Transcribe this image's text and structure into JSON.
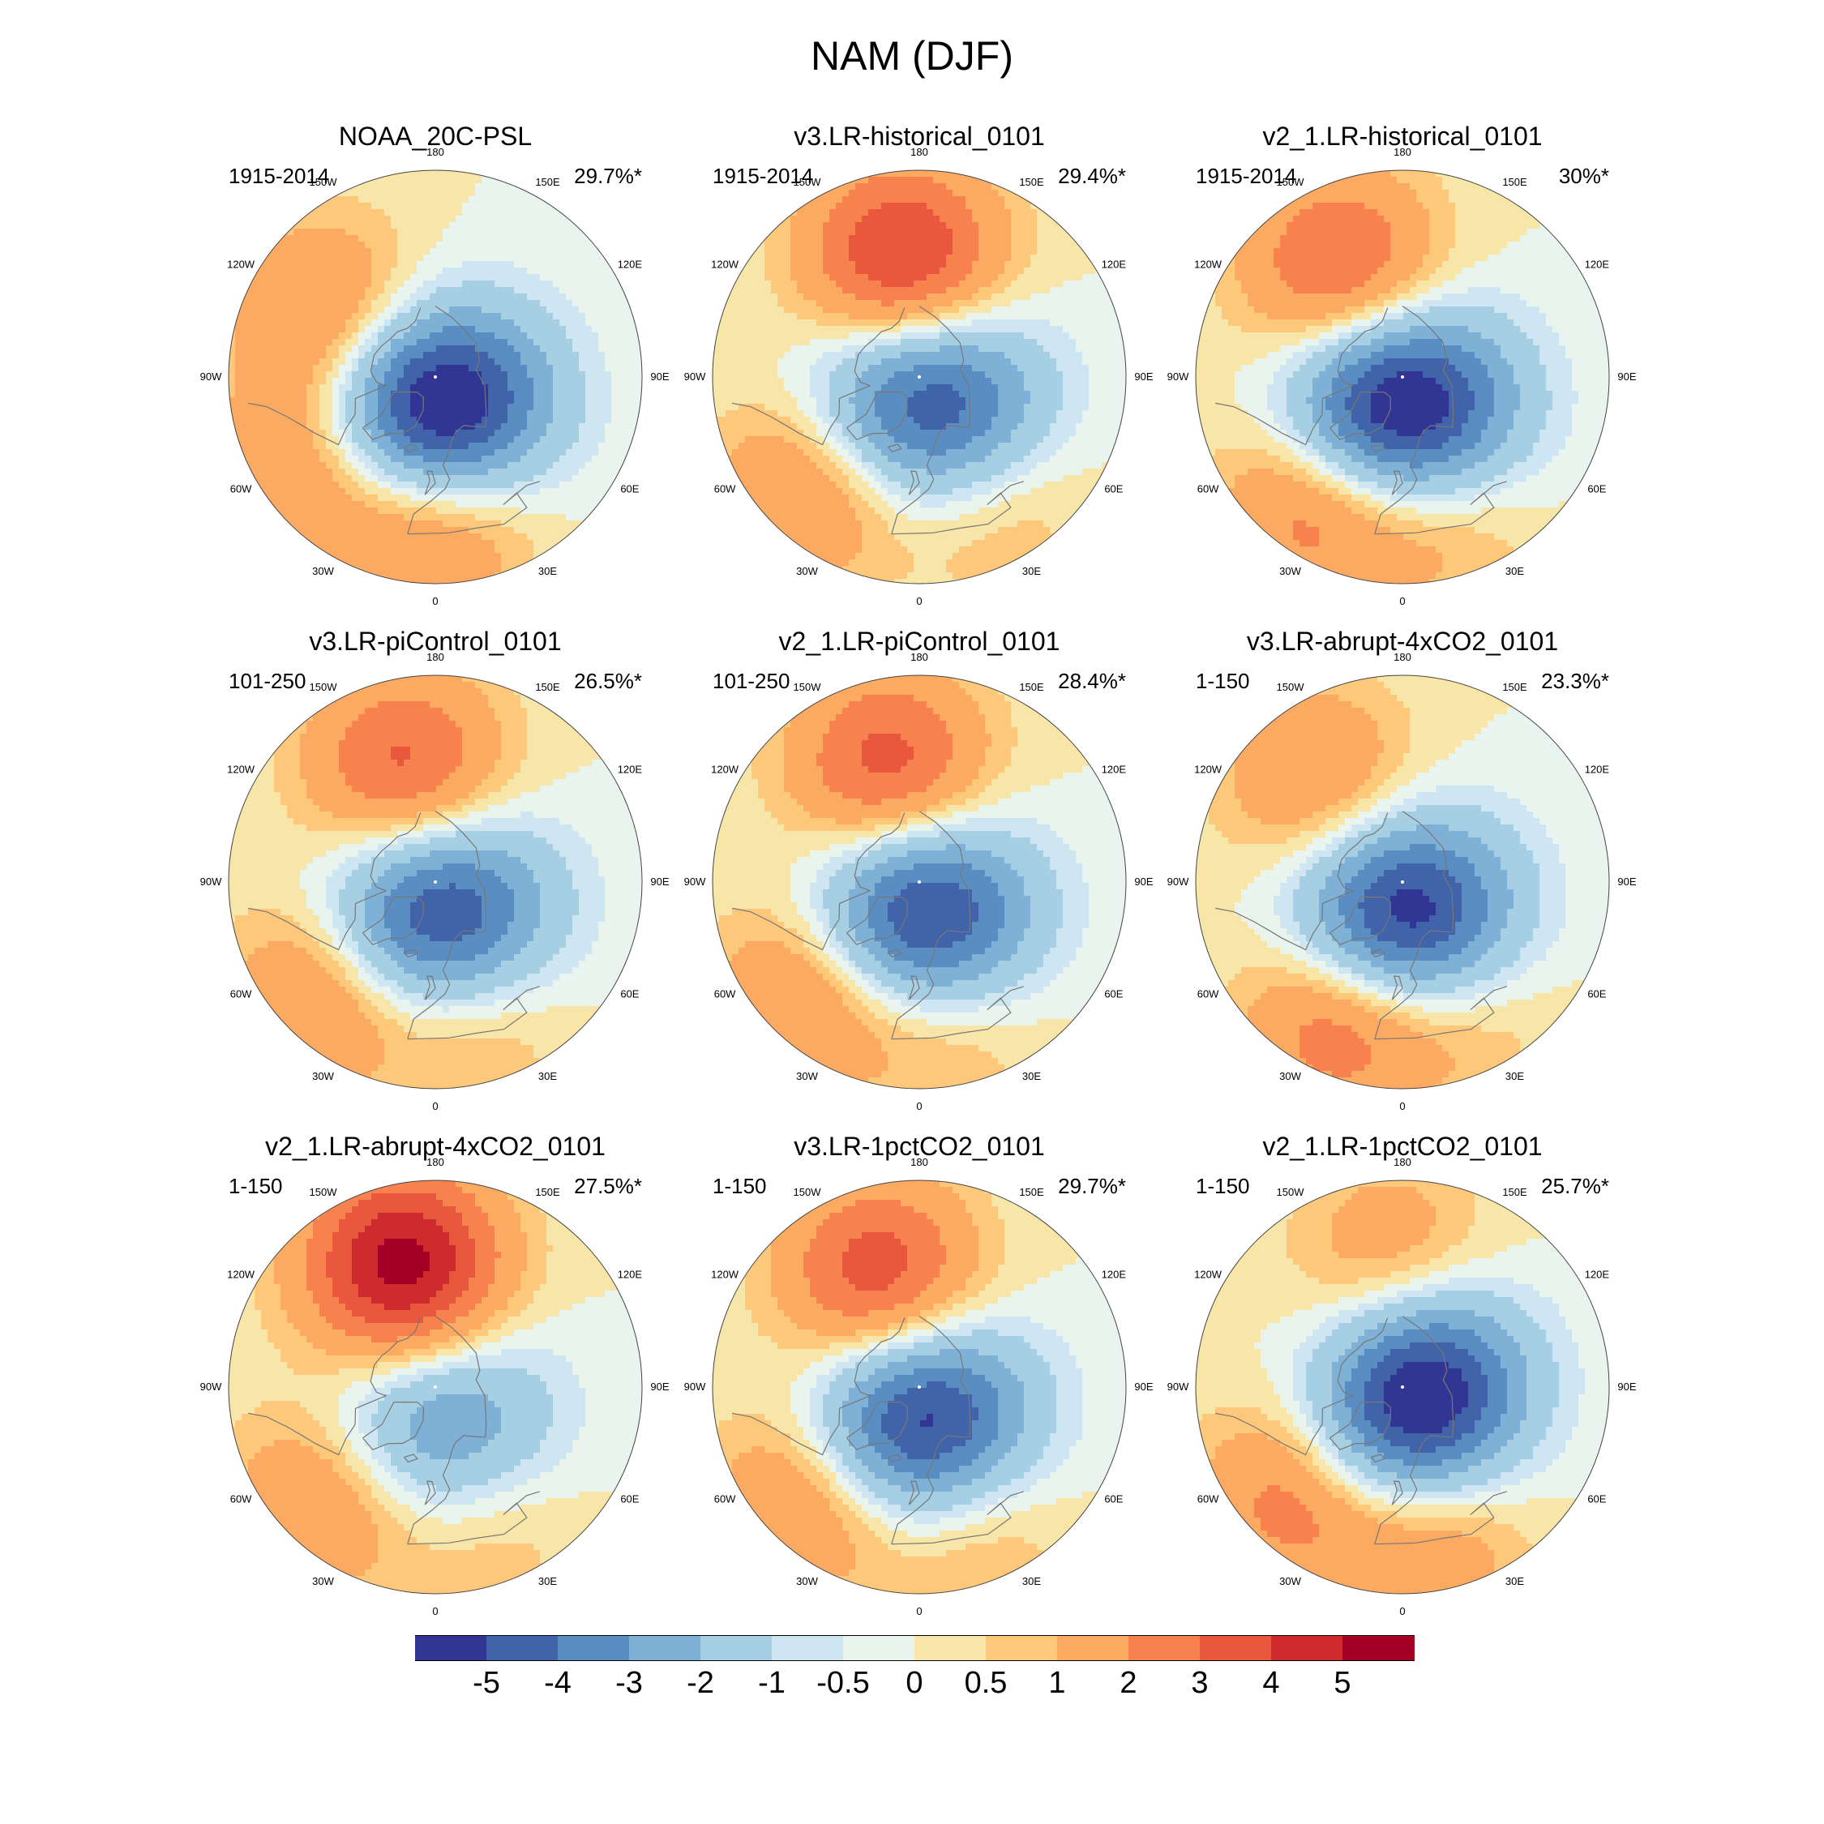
{
  "title": "NAM (DJF)",
  "panels": [
    {
      "name": "NOAA_20C-PSL",
      "period": "1915-2014",
      "variance": "29.7%*",
      "field": [
        {
          "lon": -120,
          "lat": 48,
          "amp": 2.4
        },
        {
          "lon": 0,
          "lat": 42,
          "amp": 2.6
        },
        {
          "lon": -55,
          "lat": 37,
          "amp": 2.1
        },
        {
          "lon": -30,
          "lat": 75,
          "amp": -4.6
        },
        {
          "lon": 60,
          "lat": 75,
          "amp": -3.2
        }
      ]
    },
    {
      "name": "v3.LR-historical_0101",
      "period": "1915-2014",
      "variance": "29.4%*",
      "field": [
        {
          "lon": -172,
          "lat": 50,
          "amp": 4.4
        },
        {
          "lon": -45,
          "lat": 38,
          "amp": 2.6
        },
        {
          "lon": 30,
          "lat": 40,
          "amp": 1.2
        },
        {
          "lon": -45,
          "lat": 75,
          "amp": -3.0
        },
        {
          "lon": 60,
          "lat": 73,
          "amp": -3.2
        }
      ]
    },
    {
      "name": "v2_1.LR-historical_0101",
      "period": "1915-2014",
      "variance": "30%*",
      "field": [
        {
          "lon": -150,
          "lat": 48,
          "amp": 3.4
        },
        {
          "lon": -35,
          "lat": 38,
          "amp": 2.8
        },
        {
          "lon": 15,
          "lat": 40,
          "amp": 1.4
        },
        {
          "lon": -40,
          "lat": 75,
          "amp": -4.8
        },
        {
          "lon": 55,
          "lat": 73,
          "amp": -3.0
        }
      ]
    },
    {
      "name": "v3.LR-piControl_0101",
      "period": "101-250",
      "variance": "26.5%*",
      "field": [
        {
          "lon": -165,
          "lat": 50,
          "amp": 3.4
        },
        {
          "lon": -45,
          "lat": 38,
          "amp": 2.6
        },
        {
          "lon": 15,
          "lat": 42,
          "amp": 1.4
        },
        {
          "lon": -30,
          "lat": 73,
          "amp": -3.8
        },
        {
          "lon": 60,
          "lat": 73,
          "amp": -2.6
        }
      ]
    },
    {
      "name": "v2_1.LR-piControl_0101",
      "period": "101-250",
      "variance": "28.4%*",
      "field": [
        {
          "lon": -165,
          "lat": 50,
          "amp": 3.6
        },
        {
          "lon": -45,
          "lat": 38,
          "amp": 2.6
        },
        {
          "lon": 10,
          "lat": 42,
          "amp": 1.4
        },
        {
          "lon": -30,
          "lat": 74,
          "amp": -3.6
        },
        {
          "lon": 50,
          "lat": 74,
          "amp": -3.0
        }
      ]
    },
    {
      "name": "v3.LR-abrupt-4xCO2_0101",
      "period": "1-150",
      "variance": "23.3%*",
      "field": [
        {
          "lon": -140,
          "lat": 45,
          "amp": 2.2
        },
        {
          "lon": -25,
          "lat": 40,
          "amp": 3.2
        },
        {
          "lon": 25,
          "lat": 42,
          "amp": 1.2
        },
        {
          "lon": -30,
          "lat": 74,
          "amp": -4.0
        },
        {
          "lon": 50,
          "lat": 74,
          "amp": -3.0
        }
      ]
    },
    {
      "name": "v2_1.LR-abrupt-4xCO2_0101",
      "period": "1-150",
      "variance": "27.5%*",
      "field": [
        {
          "lon": -165,
          "lat": 48,
          "amp": 5.6
        },
        {
          "lon": -45,
          "lat": 38,
          "amp": 2.4
        },
        {
          "lon": 20,
          "lat": 38,
          "amp": 1.0
        },
        {
          "lon": -30,
          "lat": 72,
          "amp": -2.4
        },
        {
          "lon": 60,
          "lat": 72,
          "amp": -1.6
        }
      ]
    },
    {
      "name": "v3.LR-1pctCO2_0101",
      "period": "1-150",
      "variance": "29.7%*",
      "field": [
        {
          "lon": -160,
          "lat": 50,
          "amp": 3.8
        },
        {
          "lon": -45,
          "lat": 38,
          "amp": 2.6
        },
        {
          "lon": 20,
          "lat": 40,
          "amp": 1.4
        },
        {
          "lon": -30,
          "lat": 73,
          "amp": -4.0
        },
        {
          "lon": 55,
          "lat": 74,
          "amp": -2.8
        }
      ]
    },
    {
      "name": "v2_1.LR-1pctCO2_0101",
      "period": "1-150",
      "variance": "25.7%*",
      "field": [
        {
          "lon": -175,
          "lat": 45,
          "amp": 1.8
        },
        {
          "lon": -45,
          "lat": 38,
          "amp": 2.6
        },
        {
          "lon": 10,
          "lat": 40,
          "amp": 2.2
        },
        {
          "lon": -10,
          "lat": 74,
          "amp": -3.4
        },
        {
          "lon": 100,
          "lat": 78,
          "amp": -4.2
        }
      ]
    }
  ],
  "lon_labels": [
    "180",
    "150E",
    "120E",
    "90E",
    "60E",
    "30E",
    "0",
    "30W",
    "60W",
    "90W",
    "120W",
    "150W"
  ],
  "lon_values": [
    180,
    150,
    120,
    90,
    60,
    30,
    0,
    -30,
    -60,
    -90,
    -120,
    -150
  ],
  "colorbar": {
    "colors": [
      "#313695",
      "#4063a9",
      "#5a8ec2",
      "#7fb0d6",
      "#a6cfe4",
      "#cde6f1",
      "#eaf4ef",
      "#f8e6a8",
      "#fdc87a",
      "#fcaa62",
      "#f7824e",
      "#e9573c",
      "#cf2a2d",
      "#a50026"
    ],
    "labels": [
      "-5",
      "-4",
      "-3",
      "-2",
      "-1",
      "-0.5",
      "0",
      "0.5",
      "1",
      "2",
      "3",
      "4",
      "5"
    ],
    "levels": [
      -5,
      -4,
      -3,
      -2,
      -1,
      -0.5,
      0,
      0.5,
      1,
      2,
      3,
      4,
      5
    ]
  }
}
